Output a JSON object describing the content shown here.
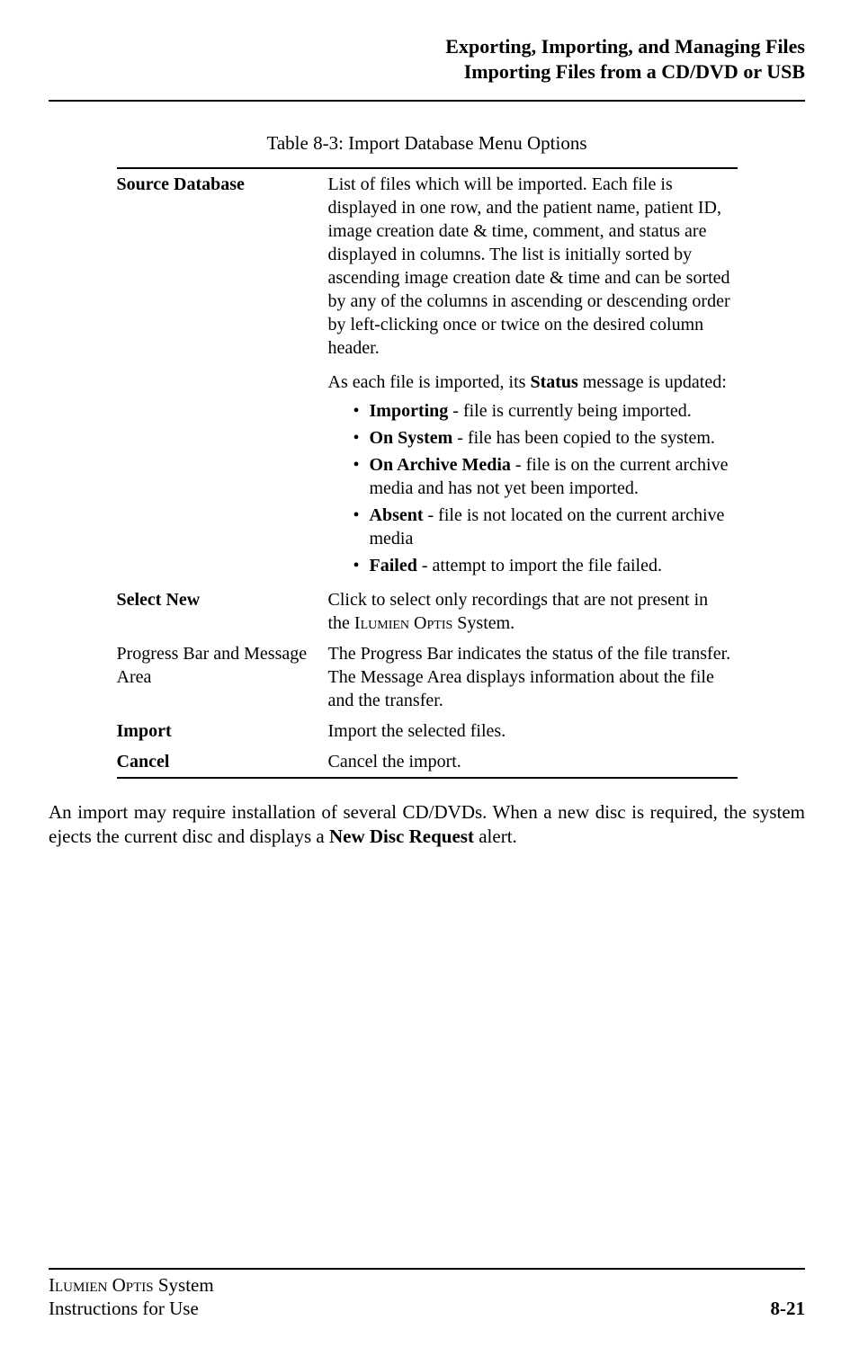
{
  "header": {
    "line1": "Exporting, Importing, and Managing Files",
    "line2": "Importing Files from a CD/DVD or USB"
  },
  "caption": "Table 8-3:  Import Database Menu Options",
  "rows": {
    "source_database": {
      "label": "Source Database",
      "desc": "List of files which will be imported. Each file is displayed in one row, and the patient name, patient ID, image creation date & time, comment, and status are displayed in columns. The list is initially sorted by ascending image creation date & time and can be sorted by any of the columns in ascending or descending order by left-clicking once or twice on the desired column header.",
      "status_intro_pre": "As each file is imported, its ",
      "status_word": "Status",
      "status_intro_post": " message is updated:",
      "statuses": {
        "importing_label": "Importing",
        "importing_text": " - file is currently being imported.",
        "onsystem_label": "On System",
        "onsystem_text": " - file has been copied to the system.",
        "onarchive_label": "On Archive Media",
        "onarchive_text": " - file is on the current archive media and has not yet been imported.",
        "absent_label": "Absent",
        "absent_text": " - file is not located on the current archive media",
        "failed_label": "Failed",
        "failed_text": " - attempt to import the file failed."
      }
    },
    "select_new": {
      "label": "Select New",
      "desc_pre": "Click to select only recordings that are not present in the I",
      "desc_sc1": "lumien",
      "desc_mid": " O",
      "desc_sc2": "ptis",
      "desc_post": " System."
    },
    "progress": {
      "label": "Progress Bar and Message Area",
      "desc": "The Progress Bar indicates the status of the file transfer. The Message Area displays information about the file and the transfer."
    },
    "import": {
      "label": "Import",
      "desc": "Import the selected files."
    },
    "cancel": {
      "label": "Cancel",
      "desc": "Cancel the import."
    }
  },
  "after_table": {
    "pre": "An import may require installation of several CD/DVDs. When a new disc is required, the system ejects the current disc and displays a ",
    "bold": "New Disc Request",
    "post": " alert."
  },
  "footer": {
    "line1_pre": "I",
    "line1_sc1": "lumien",
    "line1_mid": " O",
    "line1_sc2": "ptis",
    "line1_post": " System",
    "line2": "Instructions for Use",
    "page": "8-21"
  }
}
